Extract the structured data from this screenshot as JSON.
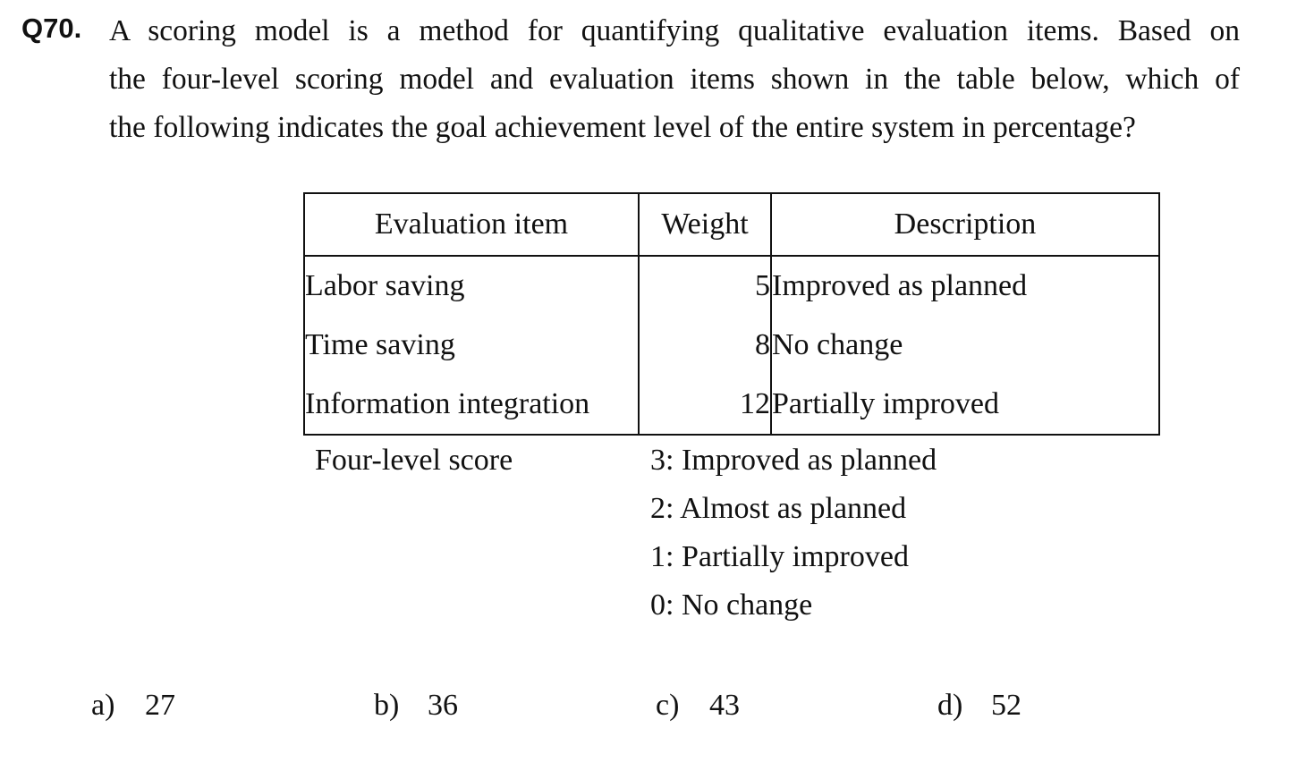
{
  "question": {
    "number": "Q70.",
    "stem_lines": [
      "A scoring model is a method for quantifying qualitative evaluation items.   Based on",
      "the four-level scoring model and evaluation items shown in the table below, which of",
      "the following indicates the goal achievement level of the entire system in percentage?"
    ]
  },
  "table": {
    "headers": [
      "Evaluation item",
      "Weight",
      "Description"
    ],
    "rows": [
      {
        "item": "Labor saving",
        "weight": "5",
        "description": "Improved as planned"
      },
      {
        "item": "Time saving",
        "weight": "8",
        "description": "No change"
      },
      {
        "item": "Information integration",
        "weight": "12",
        "description": "Partially improved"
      }
    ]
  },
  "scoring": {
    "label": "Four-level score",
    "levels": [
      "3: Improved as planned",
      "2: Almost as planned",
      "1: Partially improved",
      "0: No change"
    ]
  },
  "choices": [
    {
      "letter": "a)",
      "value": "27"
    },
    {
      "letter": "b)",
      "value": "36"
    },
    {
      "letter": "c)",
      "value": "43"
    },
    {
      "letter": "d)",
      "value": "52"
    }
  ]
}
